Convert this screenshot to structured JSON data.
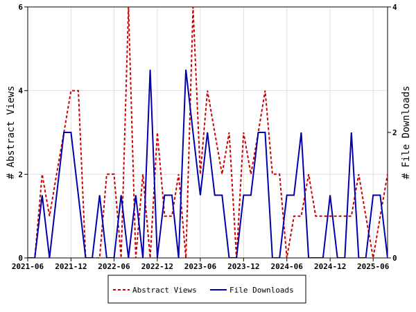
{
  "chart_data": {
    "type": "line",
    "ylabel": "# Abstract Views",
    "y2label": "# File Downloads",
    "ylim": [
      0,
      6
    ],
    "y2lim": [
      0,
      4
    ],
    "yticks": [
      "0",
      "2",
      "4",
      "6"
    ],
    "y2ticks": [
      "0",
      "2",
      "4"
    ],
    "xrange": [
      "2021-06-01",
      "2025-08-01"
    ],
    "xticks": [
      {
        "label": "2021-06",
        "date": "2021-06-01"
      },
      {
        "label": "2021-12",
        "date": "2021-12-01"
      },
      {
        "label": "2022-06",
        "date": "2022-06-01"
      },
      {
        "label": "2022-12",
        "date": "2022-12-01"
      },
      {
        "label": "2023-06",
        "date": "2023-06-01"
      },
      {
        "label": "2023-12",
        "date": "2023-12-01"
      },
      {
        "label": "2024-06",
        "date": "2024-06-01"
      },
      {
        "label": "2024-12",
        "date": "2024-12-01"
      },
      {
        "label": "2025-06",
        "date": "2025-06-01"
      }
    ],
    "legend_position": "bottom",
    "series": [
      {
        "name": "Abstract Views",
        "axis": "left",
        "color": "#cc0000",
        "dash": "dashed",
        "points": [
          [
            "2021-06-01",
            0
          ],
          [
            "2021-07-01",
            0
          ],
          [
            "2021-08-01",
            2
          ],
          [
            "2021-09-01",
            1
          ],
          [
            "2021-10-01",
            2
          ],
          [
            "2021-11-01",
            3
          ],
          [
            "2021-12-01",
            4
          ],
          [
            "2022-01-01",
            4
          ],
          [
            "2022-02-01",
            0
          ],
          [
            "2022-03-01",
            0
          ],
          [
            "2022-04-01",
            0
          ],
          [
            "2022-05-01",
            2
          ],
          [
            "2022-06-01",
            2
          ],
          [
            "2022-07-01",
            0
          ],
          [
            "2022-08-01",
            6
          ],
          [
            "2022-09-01",
            0
          ],
          [
            "2022-10-01",
            2
          ],
          [
            "2022-11-01",
            0
          ],
          [
            "2022-12-01",
            3
          ],
          [
            "2023-01-01",
            1
          ],
          [
            "2023-02-01",
            1
          ],
          [
            "2023-03-01",
            2
          ],
          [
            "2023-04-01",
            0
          ],
          [
            "2023-05-01",
            6
          ],
          [
            "2023-06-01",
            2
          ],
          [
            "2023-07-01",
            4
          ],
          [
            "2023-08-01",
            3
          ],
          [
            "2023-09-01",
            2
          ],
          [
            "2023-10-01",
            3
          ],
          [
            "2023-11-01",
            0
          ],
          [
            "2023-12-01",
            3
          ],
          [
            "2024-01-01",
            2
          ],
          [
            "2024-02-01",
            3
          ],
          [
            "2024-03-01",
            4
          ],
          [
            "2024-04-01",
            2
          ],
          [
            "2024-05-01",
            2
          ],
          [
            "2024-06-01",
            0
          ],
          [
            "2024-07-01",
            1
          ],
          [
            "2024-08-01",
            1
          ],
          [
            "2024-09-01",
            2
          ],
          [
            "2024-10-01",
            1
          ],
          [
            "2024-11-01",
            1
          ],
          [
            "2024-12-01",
            1
          ],
          [
            "2025-01-01",
            1
          ],
          [
            "2025-02-01",
            1
          ],
          [
            "2025-03-01",
            1
          ],
          [
            "2025-04-01",
            2
          ],
          [
            "2025-05-01",
            1
          ],
          [
            "2025-06-01",
            0
          ],
          [
            "2025-07-01",
            1
          ],
          [
            "2025-08-01",
            2
          ],
          [
            "2025-09-01",
            1
          ],
          [
            "2025-10-01",
            2
          ]
        ]
      },
      {
        "name": "File Downloads",
        "axis": "right",
        "color": "#0000aa",
        "dash": "solid",
        "points": [
          [
            "2021-06-01",
            0
          ],
          [
            "2021-07-01",
            0
          ],
          [
            "2021-08-01",
            1
          ],
          [
            "2021-09-01",
            0
          ],
          [
            "2021-10-01",
            1
          ],
          [
            "2021-11-01",
            2
          ],
          [
            "2021-12-01",
            2
          ],
          [
            "2022-01-01",
            1
          ],
          [
            "2022-02-01",
            0
          ],
          [
            "2022-03-01",
            0
          ],
          [
            "2022-04-01",
            1
          ],
          [
            "2022-05-01",
            0
          ],
          [
            "2022-06-01",
            0
          ],
          [
            "2022-07-01",
            1
          ],
          [
            "2022-08-01",
            0
          ],
          [
            "2022-09-01",
            1
          ],
          [
            "2022-10-01",
            0
          ],
          [
            "2022-11-01",
            3
          ],
          [
            "2022-12-01",
            0
          ],
          [
            "2023-01-01",
            1
          ],
          [
            "2023-02-01",
            1
          ],
          [
            "2023-03-01",
            0
          ],
          [
            "2023-04-01",
            3
          ],
          [
            "2023-05-01",
            2
          ],
          [
            "2023-06-01",
            1
          ],
          [
            "2023-07-01",
            2
          ],
          [
            "2023-08-01",
            1
          ],
          [
            "2023-09-01",
            1
          ],
          [
            "2023-10-01",
            0
          ],
          [
            "2023-11-01",
            0
          ],
          [
            "2023-12-01",
            1
          ],
          [
            "2024-01-01",
            1
          ],
          [
            "2024-02-01",
            2
          ],
          [
            "2024-03-01",
            2
          ],
          [
            "2024-04-01",
            0
          ],
          [
            "2024-05-01",
            0
          ],
          [
            "2024-06-01",
            1
          ],
          [
            "2024-07-01",
            1
          ],
          [
            "2024-08-01",
            2
          ],
          [
            "2024-09-01",
            0
          ],
          [
            "2024-10-01",
            0
          ],
          [
            "2024-11-01",
            0
          ],
          [
            "2024-12-01",
            1
          ],
          [
            "2025-01-01",
            0
          ],
          [
            "2025-02-01",
            0
          ],
          [
            "2025-03-01",
            2
          ],
          [
            "2025-04-01",
            0
          ],
          [
            "2025-05-01",
            0
          ],
          [
            "2025-06-01",
            1
          ],
          [
            "2025-07-01",
            1
          ],
          [
            "2025-08-01",
            0
          ],
          [
            "2025-09-01",
            1
          ],
          [
            "2025-10-01",
            0
          ]
        ]
      }
    ]
  }
}
